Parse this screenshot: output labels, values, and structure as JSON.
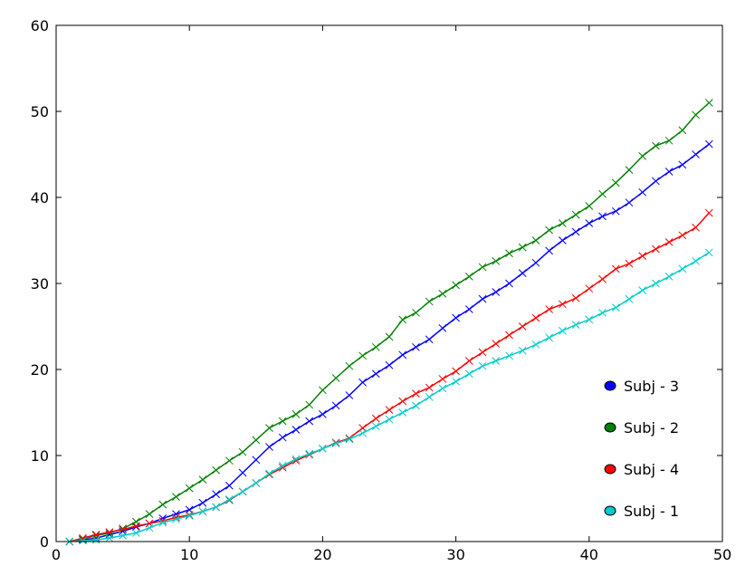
{
  "chart_data": {
    "type": "line",
    "title": "",
    "xlabel": "",
    "ylabel": "",
    "xlim": [
      0,
      50
    ],
    "ylim": [
      0,
      60
    ],
    "xticks": [
      0,
      10,
      20,
      30,
      40,
      50
    ],
    "yticks": [
      0,
      10,
      20,
      30,
      40,
      50,
      60
    ],
    "xtick_labels": [
      "0",
      "10",
      "20",
      "30",
      "40",
      "50"
    ],
    "ytick_labels": [
      "0",
      "10",
      "20",
      "30",
      "40",
      "50",
      "60"
    ],
    "grid": false,
    "marker": "x",
    "legend_position": "lower-right",
    "x": [
      1,
      2,
      3,
      4,
      5,
      6,
      7,
      8,
      9,
      10,
      11,
      12,
      13,
      14,
      15,
      16,
      17,
      18,
      19,
      20,
      21,
      22,
      23,
      24,
      25,
      26,
      27,
      28,
      29,
      30,
      31,
      32,
      33,
      34,
      35,
      36,
      37,
      38,
      39,
      40,
      41,
      42,
      43,
      44,
      45,
      46,
      47,
      48,
      49
    ],
    "series": [
      {
        "name": "Subj - 3",
        "color": "#0000ff",
        "legend_marker": "filled-circle",
        "values": [
          0.0,
          0.2,
          0.4,
          0.8,
          1.2,
          1.7,
          2.1,
          2.7,
          3.2,
          3.7,
          4.5,
          5.5,
          6.5,
          8.0,
          9.5,
          11.0,
          12.1,
          13.0,
          14.0,
          14.8,
          15.8,
          17.0,
          18.5,
          19.5,
          20.5,
          21.7,
          22.6,
          23.5,
          24.8,
          26.0,
          27.0,
          28.2,
          29.0,
          30.0,
          31.2,
          32.4,
          33.8,
          35.0,
          36.0,
          37.0,
          37.8,
          38.4,
          39.4,
          40.6,
          41.9,
          43.0,
          43.8,
          45.0,
          46.2
        ]
      },
      {
        "name": "Subj - 2",
        "color": "#008000",
        "legend_marker": "filled-circle",
        "values": [
          0.0,
          0.3,
          0.7,
          1.0,
          1.5,
          2.3,
          3.2,
          4.3,
          5.2,
          6.2,
          7.2,
          8.3,
          9.4,
          10.4,
          11.8,
          13.2,
          14.0,
          14.8,
          15.9,
          17.6,
          19.0,
          20.4,
          21.6,
          22.6,
          23.8,
          25.8,
          26.6,
          27.9,
          28.8,
          29.8,
          30.8,
          31.9,
          32.6,
          33.5,
          34.2,
          35.0,
          36.2,
          37.0,
          38.0,
          39.0,
          40.4,
          41.7,
          43.2,
          44.8,
          46.0,
          46.6,
          47.8,
          49.6,
          51.0
        ]
      },
      {
        "name": "Subj - 4",
        "color": "#ff0000",
        "legend_marker": "filled-circle",
        "values": [
          0.0,
          0.4,
          0.8,
          1.1,
          1.4,
          1.8,
          2.1,
          2.4,
          2.8,
          3.1,
          3.5,
          4.0,
          4.8,
          5.8,
          6.8,
          7.8,
          8.6,
          9.4,
          10.1,
          10.8,
          11.5,
          12.0,
          13.2,
          14.3,
          15.3,
          16.3,
          17.2,
          17.9,
          18.9,
          19.8,
          21.0,
          22.0,
          23.0,
          24.0,
          25.0,
          26.0,
          27.0,
          27.6,
          28.3,
          29.4,
          30.5,
          31.7,
          32.3,
          33.2,
          34.0,
          34.8,
          35.6,
          36.5,
          38.2
        ]
      },
      {
        "name": "Subj - 1",
        "color": "#00cccc",
        "legend_marker": "filled-circle",
        "values": [
          0.0,
          0.1,
          0.2,
          0.4,
          0.7,
          1.0,
          1.6,
          2.2,
          2.6,
          3.0,
          3.5,
          4.0,
          4.9,
          5.8,
          6.8,
          7.9,
          8.8,
          9.6,
          10.2,
          10.8,
          11.4,
          11.9,
          12.6,
          13.4,
          14.2,
          15.0,
          15.8,
          16.8,
          17.8,
          18.6,
          19.5,
          20.4,
          21.0,
          21.6,
          22.2,
          22.9,
          23.7,
          24.5,
          25.2,
          25.8,
          26.6,
          27.2,
          28.2,
          29.2,
          30.0,
          30.8,
          31.7,
          32.6,
          33.6
        ]
      }
    ]
  }
}
